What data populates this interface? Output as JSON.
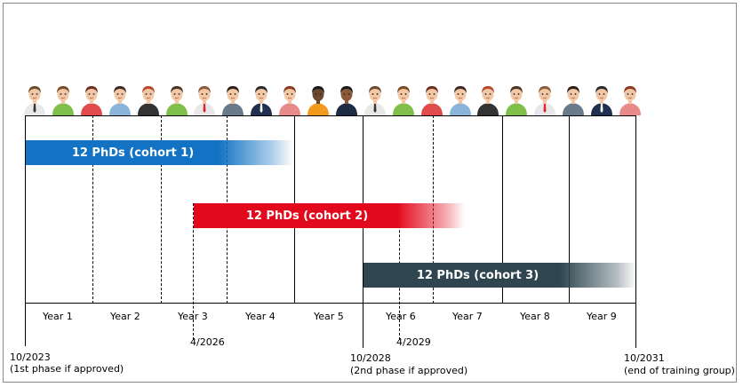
{
  "cohorts": [
    {
      "label": "12 PhDs (cohort 1)",
      "color": "#1273c4"
    },
    {
      "label": "12 PhDs (cohort 2)",
      "color": "#e3091c"
    },
    {
      "label": "12 PhDs (cohort 3)",
      "color": "#2f4651"
    }
  ],
  "years": [
    "Year 1",
    "Year 2",
    "Year 3",
    "Year 4",
    "Year 5",
    "Year 6",
    "Year 7",
    "Year 8",
    "Year 9"
  ],
  "milestones": {
    "start": {
      "date": "10/2023",
      "note": "(1st phase if approved)"
    },
    "cohort2_start": {
      "date": "4/2026"
    },
    "phase2": {
      "date": "10/2028",
      "note": "(2nd phase if approved)"
    },
    "cohort3_point": {
      "date": "4/2029"
    },
    "end": {
      "date": "10/2031",
      "note": "(end of training group)"
    }
  },
  "avatars": [
    {
      "skin": "#f2c7a5",
      "hair": "#6b4a2e",
      "shirt": "#e8e8e8",
      "tie": "#333"
    },
    {
      "skin": "#f2c7a5",
      "hair": "#7a4a22",
      "shirt": "#7fbf4a",
      "tie": ""
    },
    {
      "skin": "#f2c7a5",
      "hair": "#6b2e1e",
      "shirt": "#e24b4b",
      "tie": ""
    },
    {
      "skin": "#f2c7a5",
      "hair": "#3a2a20",
      "shirt": "#8ab4d9",
      "tie": ""
    },
    {
      "skin": "#f2c7a5",
      "hair": "#b5482a",
      "shirt": "#333333",
      "tie": ""
    },
    {
      "skin": "#f2c7a5",
      "hair": "#4a3322",
      "shirt": "#7fbf4a",
      "tie": ""
    },
    {
      "skin": "#f2c7a5",
      "hair": "#8a5a3a",
      "shirt": "#e8e8e8",
      "tie": "#d23"
    },
    {
      "skin": "#f2c7a5",
      "hair": "#2e1e16",
      "shirt": "#6a7a8a",
      "tie": ""
    },
    {
      "skin": "#f2c7a5",
      "hair": "#2a2a2a",
      "shirt": "#223050",
      "tie": "#fff"
    },
    {
      "skin": "#f2c7a5",
      "hair": "#8a3a1e",
      "shirt": "#e88a8a",
      "tie": ""
    },
    {
      "skin": "#6b4630",
      "hair": "#1a1a1a",
      "shirt": "#f29a1e",
      "tie": ""
    },
    {
      "skin": "#8a5a3a",
      "hair": "#1a1a1a",
      "shirt": "#1f2a44",
      "tie": ""
    },
    {
      "skin": "#f2c7a5",
      "hair": "#6b4a2e",
      "shirt": "#e8e8e8",
      "tie": "#333"
    },
    {
      "skin": "#f2c7a5",
      "hair": "#7a4a22",
      "shirt": "#7fbf4a",
      "tie": ""
    },
    {
      "skin": "#f2c7a5",
      "hair": "#6b2e1e",
      "shirt": "#e24b4b",
      "tie": ""
    },
    {
      "skin": "#f2c7a5",
      "hair": "#3a2a20",
      "shirt": "#8ab4d9",
      "tie": ""
    },
    {
      "skin": "#f2c7a5",
      "hair": "#b5482a",
      "shirt": "#333333",
      "tie": ""
    },
    {
      "skin": "#f2c7a5",
      "hair": "#4a3322",
      "shirt": "#7fbf4a",
      "tie": ""
    },
    {
      "skin": "#f2c7a5",
      "hair": "#8a5a3a",
      "shirt": "#e8e8e8",
      "tie": "#d23"
    },
    {
      "skin": "#f2c7a5",
      "hair": "#2e1e16",
      "shirt": "#6a7a8a",
      "tie": ""
    },
    {
      "skin": "#f2c7a5",
      "hair": "#2a2a2a",
      "shirt": "#223050",
      "tie": "#fff"
    },
    {
      "skin": "#f2c7a5",
      "hair": "#8a3a1e",
      "shirt": "#e88a8a",
      "tie": ""
    }
  ]
}
